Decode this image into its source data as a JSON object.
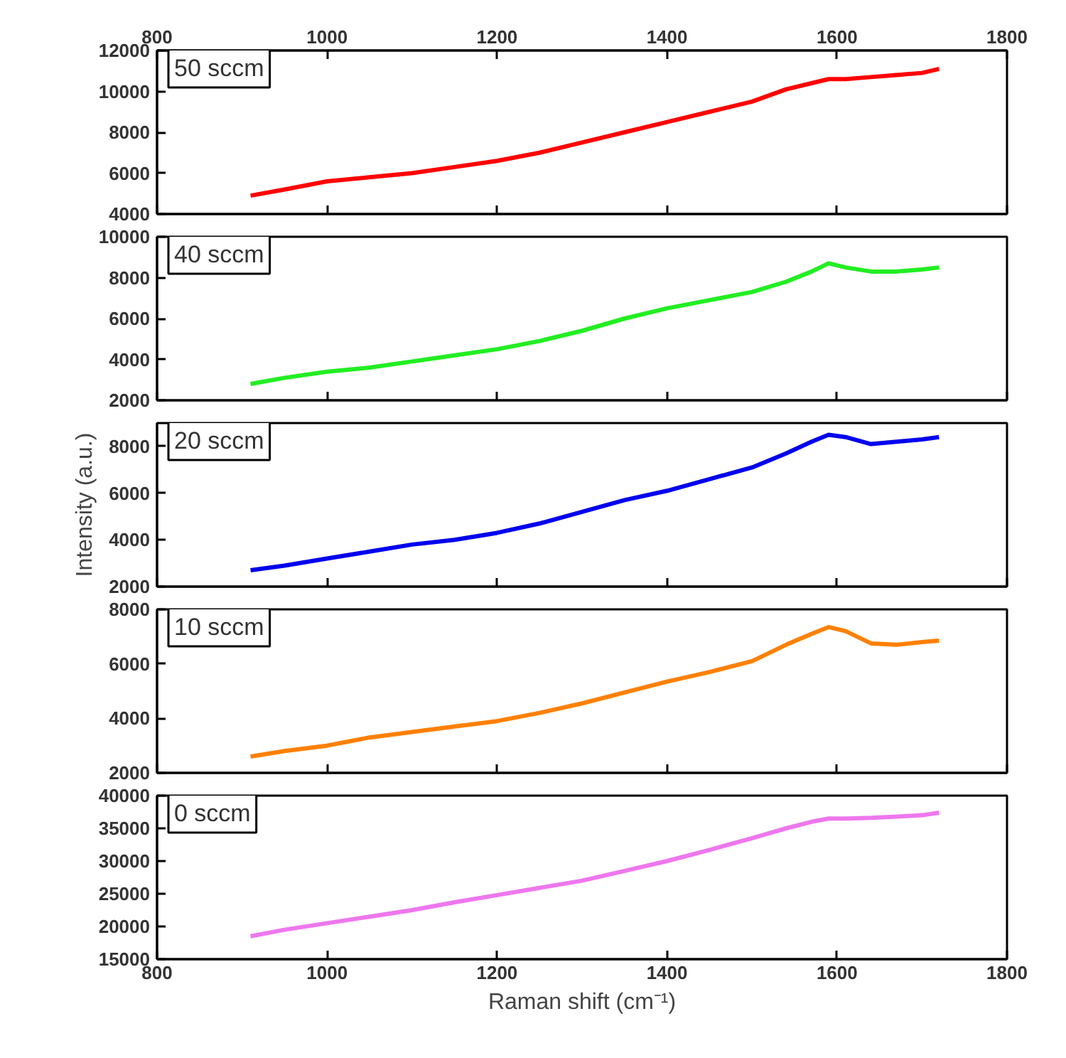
{
  "chart_data": [
    {
      "type": "line",
      "grid": false,
      "xlim": [
        800,
        1800
      ],
      "xticks": [
        800,
        1000,
        1200,
        1400,
        1600,
        1800
      ],
      "ylim": [
        4000,
        12000
      ],
      "yticks": [
        4000,
        6000,
        8000,
        10000,
        12000
      ],
      "series": [
        {
          "name": "50 sccm",
          "color": "#ff0000",
          "x": [
            910,
            950,
            1000,
            1050,
            1100,
            1150,
            1200,
            1250,
            1300,
            1350,
            1400,
            1450,
            1500,
            1540,
            1570,
            1590,
            1610,
            1640,
            1670,
            1700,
            1720
          ],
          "values": [
            4900,
            5200,
            5600,
            5800,
            6000,
            6300,
            6600,
            7000,
            7500,
            8000,
            8500,
            9000,
            9500,
            10100,
            10400,
            10600,
            10600,
            10700,
            10800,
            10900,
            11100
          ]
        }
      ]
    },
    {
      "type": "line",
      "tick_labels": "y",
      "grid": false,
      "xlim": [
        800,
        1800
      ],
      "xticks": [
        800,
        1000,
        1200,
        1400,
        1600,
        1800
      ],
      "ylim": [
        2000,
        10000
      ],
      "yticks": [
        2000,
        4000,
        6000,
        8000,
        10000
      ],
      "series": [
        {
          "name": "40 sccm",
          "color": "#22ee22",
          "x": [
            910,
            950,
            1000,
            1050,
            1100,
            1150,
            1200,
            1250,
            1300,
            1350,
            1400,
            1450,
            1500,
            1540,
            1570,
            1590,
            1610,
            1640,
            1670,
            1700,
            1720
          ],
          "values": [
            2800,
            3100,
            3400,
            3600,
            3900,
            4200,
            4500,
            4900,
            5400,
            6000,
            6500,
            6900,
            7300,
            7800,
            8300,
            8700,
            8500,
            8300,
            8300,
            8400,
            8500
          ]
        }
      ]
    },
    {
      "type": "line",
      "tick_labels": "y",
      "grid": false,
      "ylabel": "Intensity (a.u.)",
      "xlim": [
        800,
        1800
      ],
      "xticks": [
        800,
        1000,
        1200,
        1400,
        1600,
        1800
      ],
      "ylim": [
        2000,
        9000
      ],
      "yticks": [
        2000,
        4000,
        6000,
        8000
      ],
      "series": [
        {
          "name": "20 sccm",
          "color": "#0000ee",
          "x": [
            910,
            950,
            1000,
            1050,
            1100,
            1150,
            1200,
            1250,
            1300,
            1350,
            1400,
            1450,
            1500,
            1540,
            1570,
            1590,
            1610,
            1640,
            1670,
            1700,
            1720
          ],
          "values": [
            2700,
            2900,
            3200,
            3500,
            3800,
            4000,
            4300,
            4700,
            5200,
            5700,
            6100,
            6600,
            7100,
            7700,
            8200,
            8500,
            8400,
            8100,
            8200,
            8300,
            8400
          ]
        }
      ]
    },
    {
      "type": "line",
      "tick_labels": "y",
      "grid": false,
      "xlim": [
        800,
        1800
      ],
      "xticks": [
        800,
        1000,
        1200,
        1400,
        1600,
        1800
      ],
      "ylim": [
        2000,
        8000
      ],
      "yticks": [
        2000,
        4000,
        6000,
        8000
      ],
      "series": [
        {
          "name": "10 sccm",
          "color": "#ff8000",
          "x": [
            910,
            950,
            1000,
            1050,
            1100,
            1150,
            1200,
            1250,
            1300,
            1350,
            1400,
            1450,
            1500,
            1540,
            1570,
            1590,
            1610,
            1640,
            1670,
            1700,
            1720
          ],
          "values": [
            2600,
            2800,
            3000,
            3300,
            3500,
            3700,
            3900,
            4200,
            4550,
            4950,
            5350,
            5700,
            6100,
            6700,
            7100,
            7350,
            7200,
            6750,
            6700,
            6800,
            6850
          ]
        }
      ]
    },
    {
      "type": "line",
      "grid": false,
      "xlabel": "Raman shift (cm⁻¹)",
      "xlim": [
        800,
        1800
      ],
      "xticks": [
        800,
        1000,
        1200,
        1400,
        1600,
        1800
      ],
      "ylim": [
        15000,
        40000
      ],
      "yticks": [
        15000,
        20000,
        25000,
        30000,
        35000,
        40000
      ],
      "series": [
        {
          "name": "0 sccm",
          "color": "#ee77ee",
          "x": [
            910,
            950,
            1000,
            1050,
            1100,
            1150,
            1200,
            1250,
            1300,
            1350,
            1400,
            1450,
            1500,
            1540,
            1570,
            1590,
            1610,
            1640,
            1670,
            1700,
            1720
          ],
          "values": [
            18500,
            19500,
            20500,
            21500,
            22500,
            23700,
            24800,
            25900,
            27000,
            28500,
            30000,
            31700,
            33500,
            35000,
            36000,
            36500,
            36500,
            36600,
            36800,
            37000,
            37400
          ]
        }
      ]
    }
  ]
}
